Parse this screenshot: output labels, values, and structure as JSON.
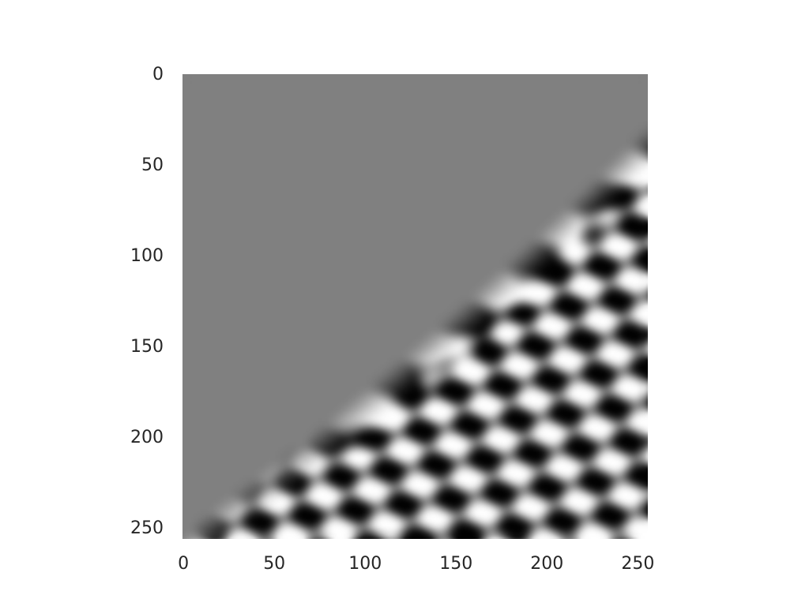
{
  "chart_data": {
    "type": "heatmap",
    "title": "",
    "xlabel": "",
    "ylabel": "",
    "colormap": "gray",
    "image_size": [
      256,
      256
    ],
    "xlim": [
      0,
      255
    ],
    "ylim": [
      255,
      0
    ],
    "grid": false,
    "xticks": [
      "0",
      "50",
      "100",
      "150",
      "200",
      "250"
    ],
    "yticks": [
      "0",
      "50",
      "100",
      "150",
      "200",
      "250"
    ],
    "xtick_values": [
      0,
      50,
      100,
      150,
      200,
      250
    ],
    "ytick_values": [
      0,
      50,
      100,
      150,
      200,
      250
    ],
    "background_value_color": "#808080"
  }
}
